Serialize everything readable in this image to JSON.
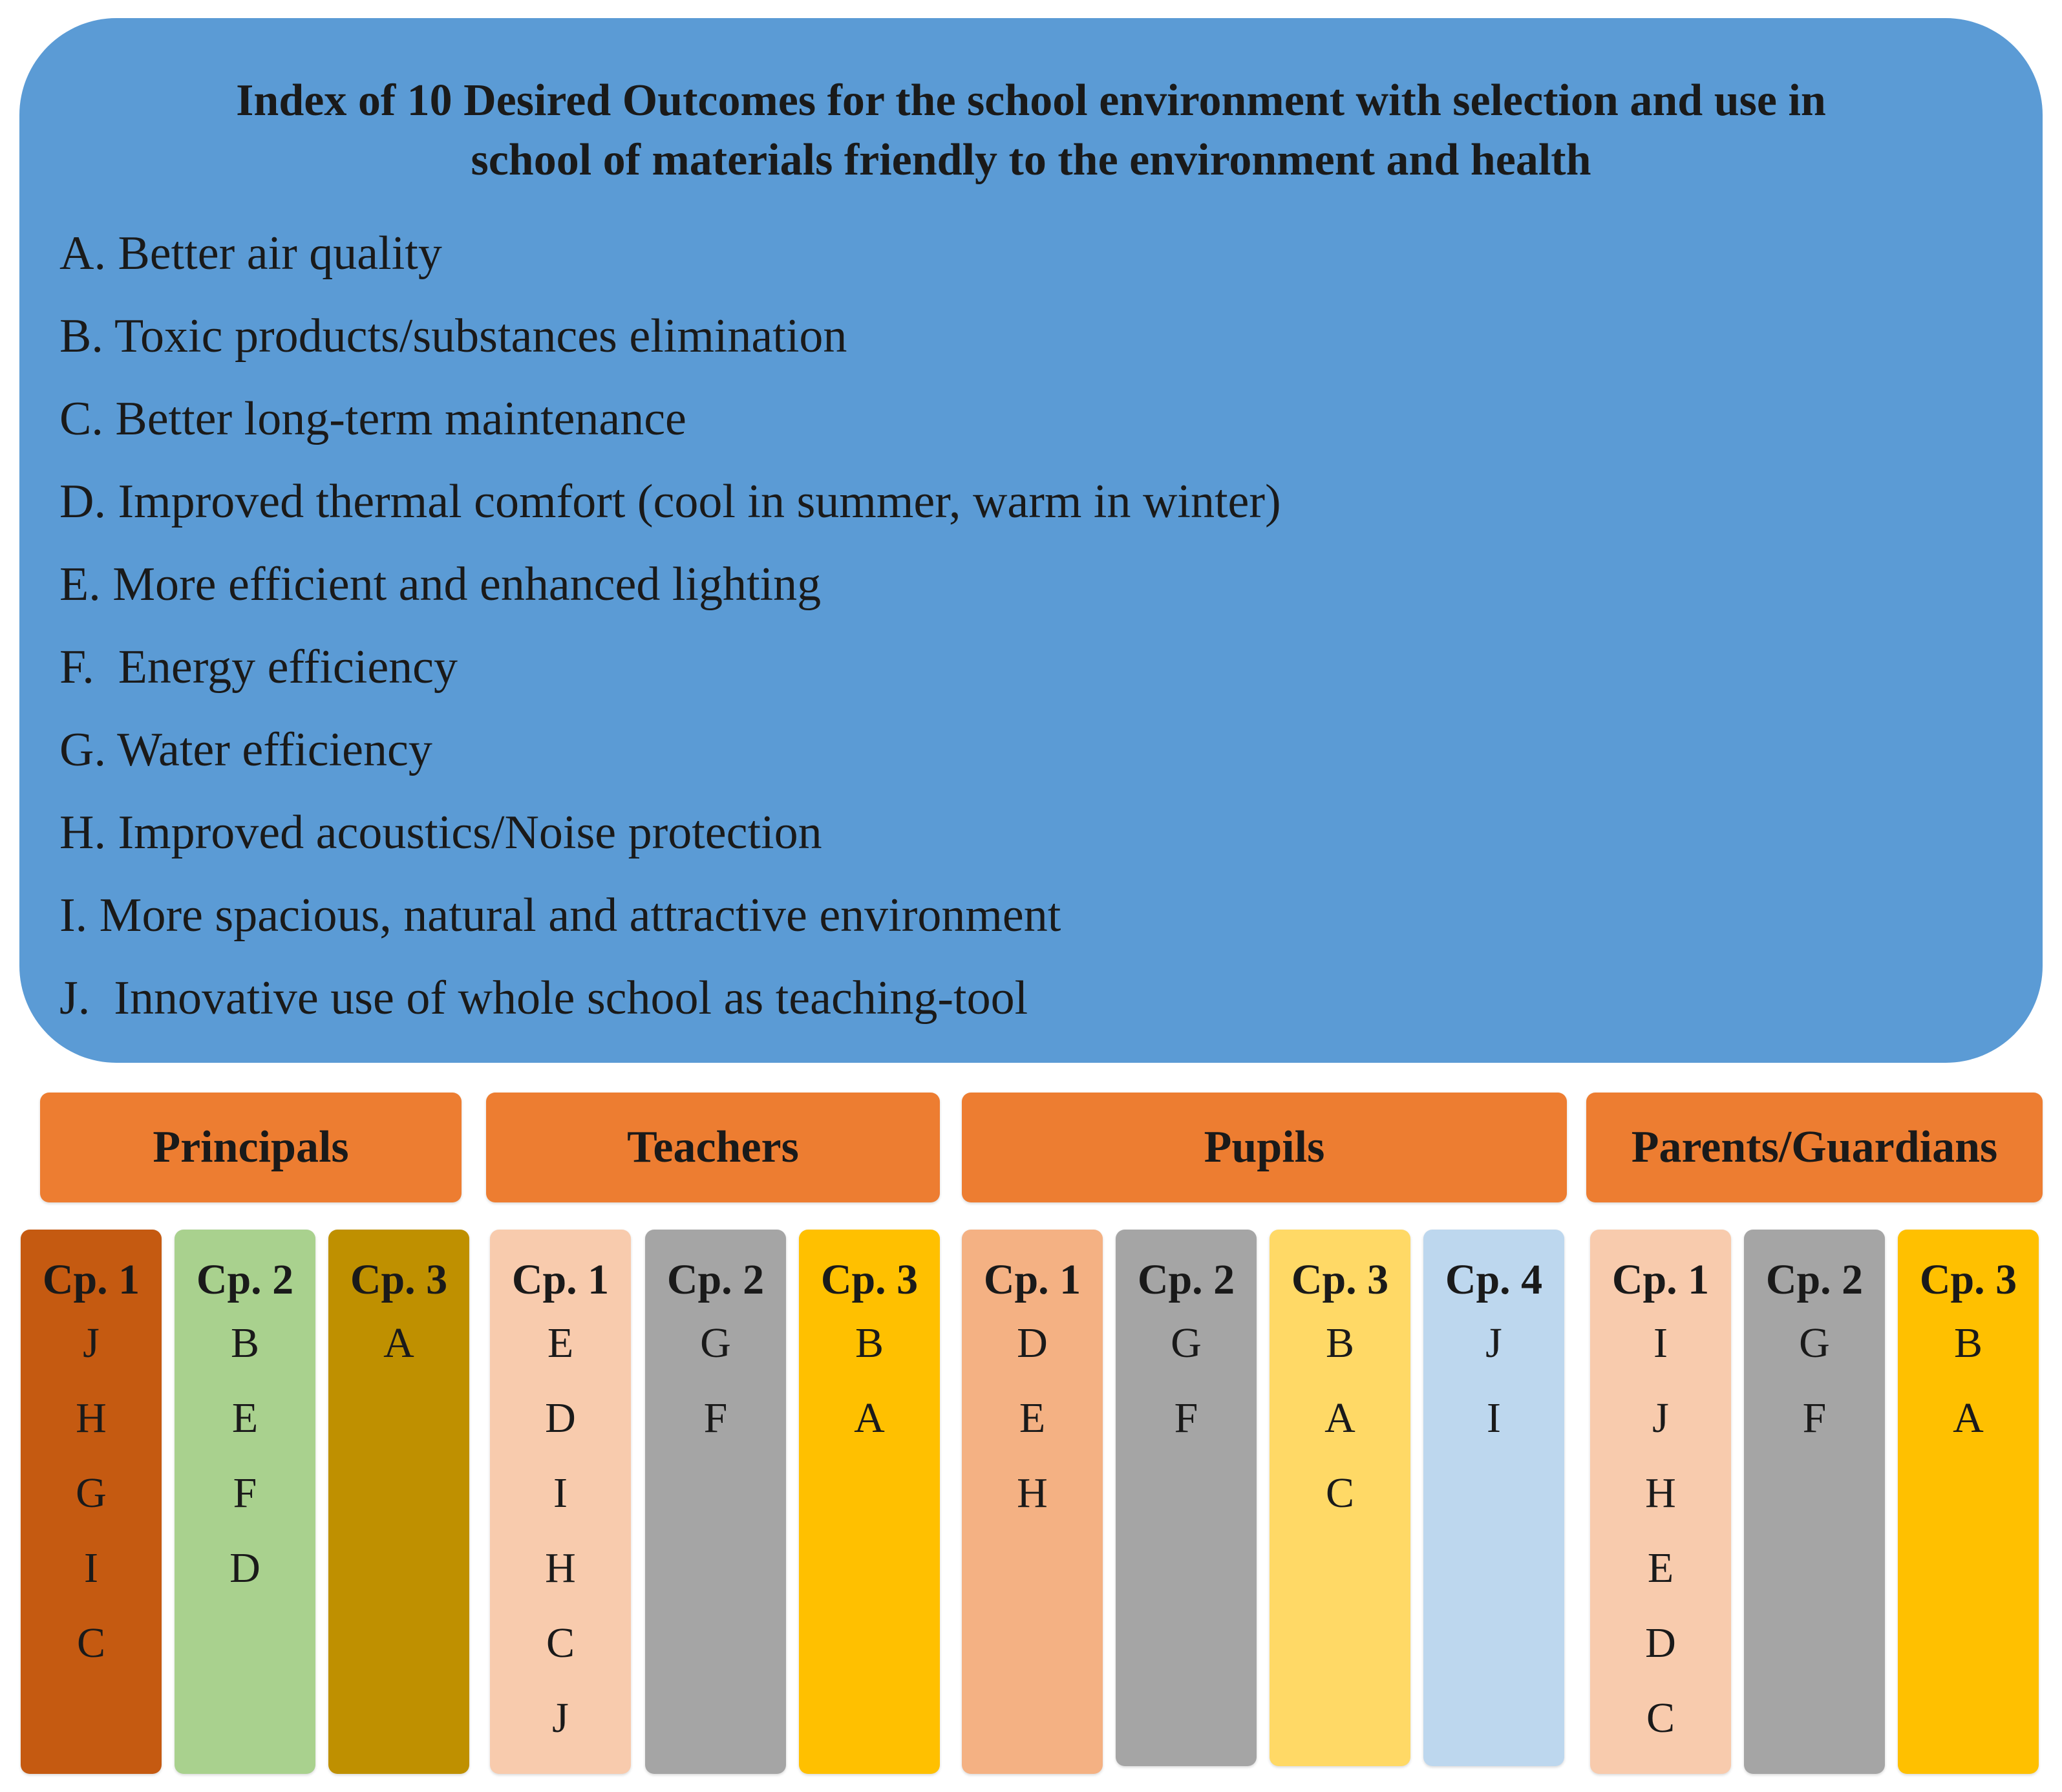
{
  "index": {
    "title_line1": "Index of 10 Desired Outcomes for the school environment with selection and use in",
    "title_line2": "school of materials friendly to the environment and health",
    "outcomes": [
      "A. Better air quality",
      "B. Toxic products/substances elimination",
      "C. Better long-term maintenance",
      "D. Improved thermal comfort (cool in summer, warm in winter)",
      "E. More efficient and enhanced lighting",
      "F.  Energy efficiency",
      "G. Water efficiency",
      "H. Improved acoustics/Noise protection",
      "I. More spacious, natural and attractive environment",
      "J.  Innovative use of whole school as teaching-tool"
    ]
  },
  "groups": [
    {
      "name": "Principals",
      "clusters": [
        {
          "label": "Cp. 1",
          "items": [
            "J",
            "H",
            "G",
            "I",
            "C"
          ],
          "color": "#c55a11"
        },
        {
          "label": "Cp. 2",
          "items": [
            "B",
            "E",
            "F",
            "D"
          ],
          "color": "#a9d18e"
        },
        {
          "label": "Cp. 3",
          "items": [
            "A"
          ],
          "color": "#bf9000"
        }
      ]
    },
    {
      "name": "Teachers",
      "clusters": [
        {
          "label": "Cp. 1",
          "items": [
            "E",
            "D",
            "I",
            "H",
            "C",
            "J"
          ],
          "color": "#f8cbad"
        },
        {
          "label": "Cp. 2",
          "items": [
            "G",
            "F"
          ],
          "color": "#a5a5a5"
        },
        {
          "label": "Cp. 3",
          "items": [
            "B",
            "A"
          ],
          "color": "#ffc000"
        }
      ]
    },
    {
      "name": "Pupils",
      "clusters": [
        {
          "label": "Cp. 1",
          "items": [
            "D",
            "E",
            "H"
          ],
          "color": "#f4b183"
        },
        {
          "label": "Cp. 2",
          "items": [
            "G",
            "F"
          ],
          "color": "#a5a5a5"
        },
        {
          "label": "Cp. 3",
          "items": [
            "B",
            "A",
            "C"
          ],
          "color": "#ffd966"
        },
        {
          "label": "Cp. 4",
          "items": [
            "J",
            "I"
          ],
          "color": "#bdd7ee"
        }
      ]
    },
    {
      "name": "Parents/Guardians",
      "clusters": [
        {
          "label": "Cp. 1",
          "items": [
            "I",
            "J",
            "H",
            "E",
            "D",
            "C"
          ],
          "color": "#f8cbad"
        },
        {
          "label": "Cp. 2",
          "items": [
            "G",
            "F"
          ],
          "color": "#a5a5a5"
        },
        {
          "label": "Cp. 3",
          "items": [
            "B",
            "A"
          ],
          "color": "#ffc000"
        }
      ]
    }
  ],
  "colors": {
    "index_background": "#5b9bd5",
    "group_header": "#ed7d31"
  }
}
